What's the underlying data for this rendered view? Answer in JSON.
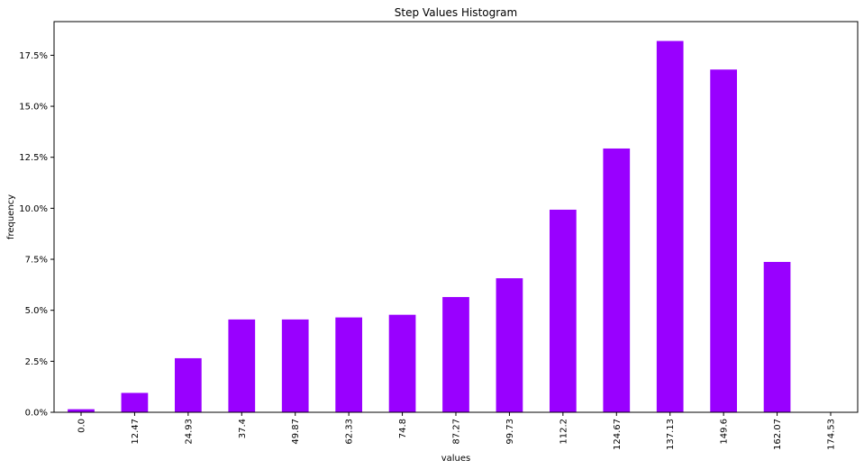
{
  "chart_data": {
    "type": "bar",
    "title": "Step Values Histogram",
    "xlabel": "values",
    "ylabel": "frequency",
    "categories": [
      "0.0",
      "12.47",
      "24.93",
      "37.4",
      "49.87",
      "62.33",
      "74.8",
      "87.27",
      "99.73",
      "112.2",
      "124.67",
      "137.13",
      "149.6",
      "162.07",
      "174.53"
    ],
    "values": [
      0.0015,
      0.0095,
      0.0265,
      0.0455,
      0.0455,
      0.0465,
      0.0478,
      0.0565,
      0.0657,
      0.0993,
      0.1293,
      0.182,
      0.168,
      0.0737,
      0.0
    ],
    "ylim": [
      0,
      0.1915
    ],
    "yticks": [
      0,
      0.025,
      0.05,
      0.075,
      0.1,
      0.125,
      0.15,
      0.175
    ],
    "ytick_labels": [
      "0.0%",
      "2.5%",
      "5.0%",
      "7.5%",
      "10.0%",
      "12.5%",
      "15.0%",
      "17.5%"
    ],
    "bar_color": "#9900ff",
    "grid": false,
    "legend": "none"
  }
}
